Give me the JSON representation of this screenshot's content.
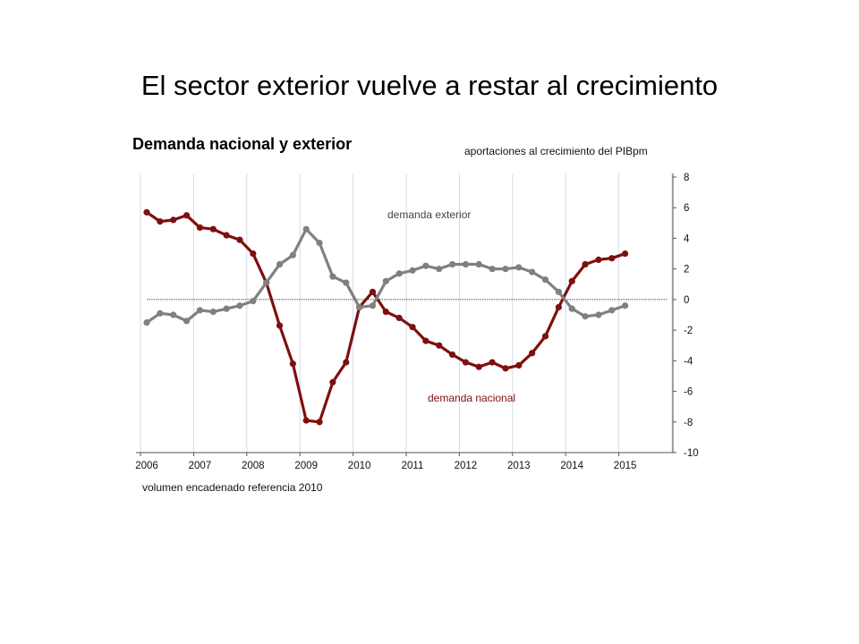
{
  "slide": {
    "title": "El sector exterior vuelve a restar al crecimiento"
  },
  "chart_data": {
    "type": "line",
    "title": "Demanda nacional y exterior",
    "subtitle": "aportaciones al crecimiento del PIBpm",
    "footnote": "volumen encadenado referencia 2010",
    "ylim": [
      -10,
      8
    ],
    "yticks": [
      8,
      6,
      4,
      2,
      0,
      -2,
      -4,
      -6,
      -8,
      -10
    ],
    "xlim": [
      2006,
      2016
    ],
    "xticks": [
      "2006",
      "2007",
      "2008",
      "2009",
      "2010",
      "2011",
      "2012",
      "2013",
      "2014",
      "2015"
    ],
    "y_axis_position": "right",
    "grid": "vertical",
    "zero_line": "dashed",
    "legend": "inline labels",
    "series": [
      {
        "name": "demanda nacional",
        "color": "#7f0f0f",
        "x": [
          2006.0,
          2006.25,
          2006.5,
          2006.75,
          2007.0,
          2007.25,
          2007.5,
          2007.75,
          2008.0,
          2008.25,
          2008.5,
          2008.75,
          2009.0,
          2009.25,
          2009.5,
          2009.75,
          2010.0,
          2010.25,
          2010.5,
          2010.75,
          2011.0,
          2011.25,
          2011.5,
          2011.75,
          2012.0,
          2012.25,
          2012.5,
          2012.75,
          2013.0,
          2013.25,
          2013.5,
          2013.75,
          2014.0,
          2014.25,
          2014.5,
          2014.75,
          2015.0
        ],
        "values": [
          5.7,
          5.1,
          5.2,
          5.5,
          4.7,
          4.6,
          4.2,
          3.9,
          3.0,
          1.1,
          -1.7,
          -4.2,
          -7.9,
          -8.0,
          -5.4,
          -4.1,
          -0.5,
          0.5,
          -0.8,
          -1.2,
          -1.8,
          -2.7,
          -3.0,
          -3.6,
          -4.1,
          -4.4,
          -4.1,
          -4.5,
          -4.3,
          -3.5,
          -2.4,
          -0.5,
          1.2,
          2.3,
          2.6,
          2.7,
          3.0
        ]
      },
      {
        "name": "demanda exterior",
        "color": "#808080",
        "x": [
          2006.0,
          2006.25,
          2006.5,
          2006.75,
          2007.0,
          2007.25,
          2007.5,
          2007.75,
          2008.0,
          2008.25,
          2008.5,
          2008.75,
          2009.0,
          2009.25,
          2009.5,
          2009.75,
          2010.0,
          2010.25,
          2010.5,
          2010.75,
          2011.0,
          2011.25,
          2011.5,
          2011.75,
          2012.0,
          2012.25,
          2012.5,
          2012.75,
          2013.0,
          2013.25,
          2013.5,
          2013.75,
          2014.0,
          2014.25,
          2014.5,
          2014.75,
          2015.0
        ],
        "values": [
          -1.5,
          -0.9,
          -1.0,
          -1.4,
          -0.7,
          -0.8,
          -0.6,
          -0.4,
          -0.1,
          1.1,
          2.3,
          2.9,
          4.6,
          3.7,
          1.5,
          1.1,
          -0.5,
          -0.4,
          1.2,
          1.7,
          1.9,
          2.2,
          2.0,
          2.3,
          2.3,
          2.3,
          2.0,
          2.0,
          2.1,
          1.8,
          1.3,
          0.5,
          -0.6,
          -1.1,
          -1.0,
          -0.7,
          -0.4
        ]
      }
    ]
  }
}
